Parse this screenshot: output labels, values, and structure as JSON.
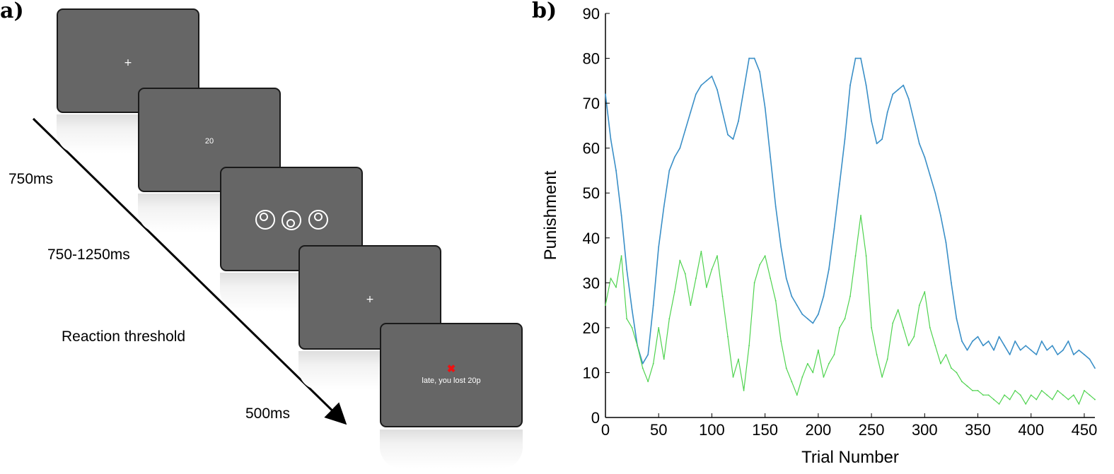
{
  "panel_a": {
    "label": "a)",
    "screens": [
      {
        "content": "+"
      },
      {
        "content": "20"
      },
      {
        "content": "stimuli"
      },
      {
        "content": "+"
      },
      {
        "mark": "✖",
        "message": "late, you lost 20p"
      }
    ],
    "timings": [
      "750ms",
      "750-1250ms",
      "Reaction threshold",
      "500ms"
    ]
  },
  "panel_b": {
    "label": "b)"
  },
  "chart_data": {
    "type": "line",
    "xlabel": "Trial Number",
    "ylabel": "Punishment",
    "xlim": [
      0,
      460
    ],
    "ylim": [
      0,
      90
    ],
    "xticks": [
      0,
      50,
      100,
      150,
      200,
      250,
      300,
      350,
      400,
      450
    ],
    "yticks": [
      0,
      10,
      20,
      30,
      40,
      50,
      60,
      70,
      80,
      90
    ],
    "series": [
      {
        "color": "#3a8fc7",
        "x": [
          0,
          5,
          10,
          15,
          20,
          25,
          30,
          35,
          40,
          45,
          50,
          55,
          60,
          65,
          70,
          75,
          80,
          85,
          90,
          95,
          100,
          105,
          110,
          115,
          120,
          125,
          130,
          135,
          140,
          145,
          150,
          155,
          160,
          165,
          170,
          175,
          180,
          185,
          190,
          195,
          200,
          205,
          210,
          215,
          220,
          225,
          230,
          235,
          240,
          245,
          250,
          255,
          260,
          265,
          270,
          275,
          280,
          285,
          290,
          295,
          300,
          305,
          310,
          315,
          320,
          325,
          330,
          335,
          340,
          345,
          350,
          355,
          360,
          365,
          370,
          375,
          380,
          385,
          390,
          395,
          400,
          405,
          410,
          415,
          420,
          425,
          430,
          435,
          440,
          445,
          450,
          455,
          460
        ],
        "y": [
          72,
          62,
          55,
          45,
          33,
          24,
          16,
          12,
          14,
          25,
          38,
          47,
          55,
          58,
          60,
          64,
          68,
          72,
          74,
          75,
          76,
          73,
          68,
          63,
          62,
          66,
          73,
          80,
          80,
          77,
          69,
          58,
          47,
          38,
          31,
          27,
          25,
          23,
          22,
          21,
          23,
          27,
          33,
          42,
          52,
          62,
          74,
          80,
          80,
          74,
          66,
          61,
          62,
          68,
          72,
          73,
          74,
          71,
          66,
          61,
          58,
          54,
          50,
          45,
          39,
          30,
          22,
          17,
          15,
          17,
          18,
          16,
          17,
          15,
          18,
          16,
          14,
          17,
          15,
          16,
          15,
          14,
          17,
          15,
          16,
          14,
          15,
          17,
          14,
          15,
          14,
          13,
          11
        ]
      },
      {
        "color": "#4fd34f",
        "x": [
          0,
          5,
          10,
          15,
          20,
          25,
          30,
          35,
          40,
          45,
          50,
          55,
          60,
          65,
          70,
          75,
          80,
          85,
          90,
          95,
          100,
          105,
          110,
          115,
          120,
          125,
          130,
          135,
          140,
          145,
          150,
          155,
          160,
          165,
          170,
          175,
          180,
          185,
          190,
          195,
          200,
          205,
          210,
          215,
          220,
          225,
          230,
          235,
          240,
          245,
          250,
          255,
          260,
          265,
          270,
          275,
          280,
          285,
          290,
          295,
          300,
          305,
          310,
          315,
          320,
          325,
          330,
          335,
          340,
          345,
          350,
          355,
          360,
          365,
          370,
          375,
          380,
          385,
          390,
          395,
          400,
          405,
          410,
          415,
          420,
          425,
          430,
          435,
          440,
          445,
          450,
          455,
          460
        ],
        "y": [
          25,
          31,
          29,
          36,
          22,
          20,
          16,
          11,
          8,
          12,
          20,
          13,
          22,
          28,
          35,
          32,
          25,
          31,
          37,
          29,
          33,
          36,
          27,
          18,
          9,
          13,
          6,
          16,
          30,
          34,
          36,
          31,
          26,
          17,
          11,
          8,
          5,
          9,
          12,
          10,
          15,
          9,
          12,
          14,
          20,
          22,
          27,
          36,
          45,
          36,
          20,
          14,
          9,
          13,
          21,
          24,
          20,
          16,
          18,
          25,
          28,
          20,
          16,
          12,
          14,
          11,
          10,
          8,
          7,
          6,
          6,
          5,
          5,
          4,
          3,
          5,
          4,
          6,
          5,
          3,
          5,
          4,
          6,
          5,
          4,
          6,
          5,
          4,
          5,
          3,
          6,
          5,
          4
        ]
      }
    ]
  }
}
